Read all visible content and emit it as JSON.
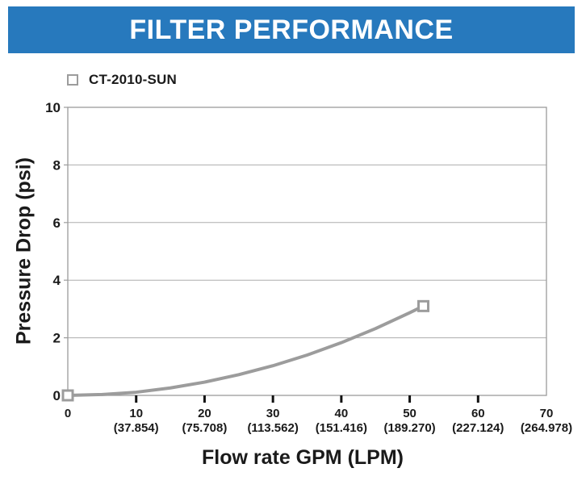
{
  "header": {
    "title": "FILTER PERFORMANCE",
    "bg_color": "#2779BD",
    "text_color": "#FFFFFF"
  },
  "chart_data": {
    "type": "line",
    "title": "FILTER PERFORMANCE",
    "xlabel": "Flow rate GPM (LPM)",
    "ylabel": "Pressure Drop (psi)",
    "xlim": [
      0,
      70
    ],
    "ylim": [
      0,
      10
    ],
    "grid": "horizontal-gridlines",
    "legend_position": "top-left-above-plot",
    "x_ticks": [
      {
        "gpm": "0",
        "lpm": ""
      },
      {
        "gpm": "10",
        "lpm": "(37.854)"
      },
      {
        "gpm": "20",
        "lpm": "(75.708)"
      },
      {
        "gpm": "30",
        "lpm": "(113.562)"
      },
      {
        "gpm": "40",
        "lpm": "(151.416)"
      },
      {
        "gpm": "50",
        "lpm": "(189.270)"
      },
      {
        "gpm": "60",
        "lpm": "(227.124)"
      },
      {
        "gpm": "70",
        "lpm": "(264.978)"
      }
    ],
    "y_ticks": [
      0,
      2,
      4,
      6,
      8,
      10
    ],
    "series": [
      {
        "name": "CT-2010-SUN",
        "color": "#9C9C9C",
        "marker": "open-square",
        "marker_points": [
          [
            0,
            0
          ],
          [
            52,
            3.1
          ]
        ],
        "curve": [
          [
            0,
            0
          ],
          [
            5,
            0.03
          ],
          [
            10,
            0.11
          ],
          [
            15,
            0.26
          ],
          [
            20,
            0.46
          ],
          [
            25,
            0.72
          ],
          [
            30,
            1.03
          ],
          [
            35,
            1.4
          ],
          [
            40,
            1.83
          ],
          [
            45,
            2.32
          ],
          [
            50,
            2.87
          ],
          [
            52,
            3.1
          ]
        ]
      }
    ],
    "colors": {
      "curve": "#9C9C9C",
      "frame": "#9C9C9C",
      "gridline": "#ADADAD",
      "tick_mark": "#111111",
      "text": "#1A1A1A"
    }
  }
}
